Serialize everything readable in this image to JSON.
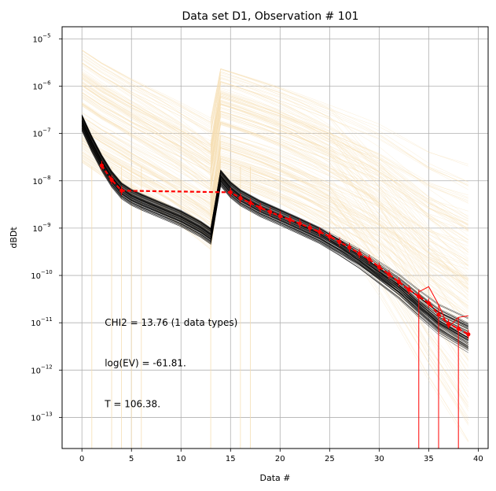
{
  "chart_data": {
    "type": "line",
    "title": "Data set D1, Observation # 101",
    "xlabel": "Data #",
    "ylabel": "dBDt",
    "yscale": "log",
    "xlim": [
      -2,
      41
    ],
    "ylim": [
      2.2e-14,
      1.8e-05
    ],
    "grid": true,
    "x_ticks": [
      0,
      5,
      10,
      15,
      20,
      25,
      30,
      35,
      40
    ],
    "y_ticks": [
      {
        "value": 1e-13,
        "base": "10",
        "exp": "−13"
      },
      {
        "value": 1e-12,
        "base": "10",
        "exp": "−12"
      },
      {
        "value": 1e-11,
        "base": "10",
        "exp": "−11"
      },
      {
        "value": 1e-10,
        "base": "10",
        "exp": "−10"
      },
      {
        "value": 1e-09,
        "base": "10",
        "exp": "−9"
      },
      {
        "value": 1e-08,
        "base": "10",
        "exp": "−8"
      },
      {
        "value": 1e-07,
        "base": "10",
        "exp": "−7"
      },
      {
        "value": 1e-06,
        "base": "10",
        "exp": "−6"
      },
      {
        "value": 1e-05,
        "base": "10",
        "exp": "−5"
      }
    ],
    "colors": {
      "prior": "#f5deb3",
      "posterior": "#000000",
      "observed": "#ff0000",
      "grid": "#b0b0b0"
    },
    "series": [
      {
        "name": "prior realizations (envelope upper)",
        "x": [
          0,
          2,
          5,
          10,
          13,
          14,
          20,
          25,
          30,
          35,
          39
        ],
        "y": [
          6e-06,
          3.2e-06,
          1.5e-06,
          5e-07,
          2.5e-07,
          2.4e-06,
          1e-06,
          4.5e-07,
          2e-07,
          6e-08,
          3.5e-08
        ]
      },
      {
        "name": "posterior realizations (median)",
        "x": [
          0,
          1,
          2,
          3,
          4,
          5,
          6,
          8,
          10,
          12,
          13,
          14,
          15,
          16,
          18,
          20,
          22,
          24,
          26,
          28,
          30,
          32,
          34,
          36,
          38,
          39
        ],
        "y": [
          1.7e-07,
          6e-08,
          2.4e-08,
          1.1e-08,
          6.2e-09,
          4.5e-09,
          3.6e-09,
          2.4e-09,
          1.6e-09,
          9.5e-10,
          6.8e-10,
          1.15e-08,
          6.5e-09,
          4.4e-09,
          2.6e-09,
          1.7e-09,
          1.1e-09,
          7e-10,
          4e-10,
          2.2e-10,
          1.1e-10,
          5.5e-11,
          2.4e-11,
          1.1e-11,
          6.5e-12,
          5e-12
        ]
      },
      {
        "name": "observed data",
        "x": [
          2,
          3,
          4,
          15,
          16,
          17,
          18,
          19,
          20,
          21,
          22,
          23,
          24,
          25,
          26,
          27,
          28,
          29,
          30,
          31,
          32,
          33,
          34,
          35,
          36,
          37,
          38,
          39
        ],
        "y": [
          2.1e-08,
          1.05e-08,
          6.2e-09,
          5.7e-09,
          4.3e-09,
          3.4e-09,
          2.7e-09,
          2.2e-09,
          1.8e-09,
          1.5e-09,
          1.25e-09,
          1.02e-09,
          8.3e-10,
          6.7e-10,
          5.1e-10,
          3.9e-10,
          2.9e-10,
          2.2e-10,
          1.5e-10,
          1.05e-10,
          7.3e-11,
          5e-11,
          3.6e-11,
          2.6e-11,
          1.5e-11,
          9.5e-12,
          7.5e-12,
          5.7e-12
        ]
      }
    ],
    "annotations": [
      {
        "text": "CHI2 = 13.76 (1 data types)",
        "x": 2.3,
        "y": 1e-11
      },
      {
        "text": "log(EV) = -61.81.",
        "x": 2.3,
        "y": 1.4e-12
      },
      {
        "text": "T = 106.38.",
        "x": 2.3,
        "y": 1.9e-13
      }
    ]
  }
}
